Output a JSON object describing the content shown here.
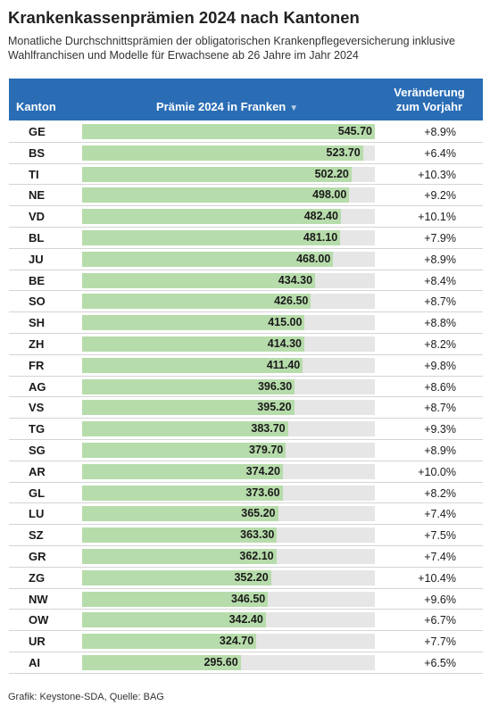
{
  "title": "Krankenkassenprämien 2024 nach Kantonen",
  "subtitle": "Monatliche Durchschnittsprämien der obligatorischen Krankenpflegeversicherung inklusive Wahlfranchisen und Modelle für Erwachsene ab 26 Jahre im Jahr 2024",
  "header": {
    "kanton": "Kanton",
    "praemie": "Prämie 2024 in Franken",
    "sort_icon": "▼",
    "change_line1": "Veränderung",
    "change_line2": "zum Vorjahr"
  },
  "footer": "Grafik: Keystone-SDA, Quelle: BAG",
  "colors": {
    "header": "#2a6db5",
    "bar": "#b7dcab",
    "track": "#e6e6e6"
  },
  "chart_data": {
    "type": "table",
    "columns": [
      "Kanton",
      "Prämie 2024 in Franken",
      "Veränderung zum Vorjahr"
    ],
    "scale_max": 545.7,
    "rows": [
      {
        "kanton": "GE",
        "value": 545.7,
        "value_label": "545.70",
        "change": "+8.9%"
      },
      {
        "kanton": "BS",
        "value": 523.7,
        "value_label": "523.70",
        "change": "+6.4%"
      },
      {
        "kanton": "TI",
        "value": 502.2,
        "value_label": "502.20",
        "change": "+10.3%"
      },
      {
        "kanton": "NE",
        "value": 498.0,
        "value_label": "498.00",
        "change": "+9.2%"
      },
      {
        "kanton": "VD",
        "value": 482.4,
        "value_label": "482.40",
        "change": "+10.1%"
      },
      {
        "kanton": "BL",
        "value": 481.1,
        "value_label": "481.10",
        "change": "+7.9%"
      },
      {
        "kanton": "JU",
        "value": 468.0,
        "value_label": "468.00",
        "change": "+8.9%"
      },
      {
        "kanton": "BE",
        "value": 434.3,
        "value_label": "434.30",
        "change": "+8.4%"
      },
      {
        "kanton": "SO",
        "value": 426.5,
        "value_label": "426.50",
        "change": "+8.7%"
      },
      {
        "kanton": "SH",
        "value": 415.0,
        "value_label": "415.00",
        "change": "+8.8%"
      },
      {
        "kanton": "ZH",
        "value": 414.3,
        "value_label": "414.30",
        "change": "+8.2%"
      },
      {
        "kanton": "FR",
        "value": 411.4,
        "value_label": "411.40",
        "change": "+9.8%"
      },
      {
        "kanton": "AG",
        "value": 396.3,
        "value_label": "396.30",
        "change": "+8.6%"
      },
      {
        "kanton": "VS",
        "value": 395.2,
        "value_label": "395.20",
        "change": "+8.7%"
      },
      {
        "kanton": "TG",
        "value": 383.7,
        "value_label": "383.70",
        "change": "+9.3%"
      },
      {
        "kanton": "SG",
        "value": 379.7,
        "value_label": "379.70",
        "change": "+8.9%"
      },
      {
        "kanton": "AR",
        "value": 374.2,
        "value_label": "374.20",
        "change": "+10.0%"
      },
      {
        "kanton": "GL",
        "value": 373.6,
        "value_label": "373.60",
        "change": "+8.2%"
      },
      {
        "kanton": "LU",
        "value": 365.2,
        "value_label": "365.20",
        "change": "+7.4%"
      },
      {
        "kanton": "SZ",
        "value": 363.3,
        "value_label": "363.30",
        "change": "+7.5%"
      },
      {
        "kanton": "GR",
        "value": 362.1,
        "value_label": "362.10",
        "change": "+7.4%"
      },
      {
        "kanton": "ZG",
        "value": 352.2,
        "value_label": "352.20",
        "change": "+10.4%"
      },
      {
        "kanton": "NW",
        "value": 346.5,
        "value_label": "346.50",
        "change": "+9.6%"
      },
      {
        "kanton": "OW",
        "value": 342.4,
        "value_label": "342.40",
        "change": "+6.7%"
      },
      {
        "kanton": "UR",
        "value": 324.7,
        "value_label": "324.70",
        "change": "+7.7%"
      },
      {
        "kanton": "AI",
        "value": 295.6,
        "value_label": "295.60",
        "change": "+6.5%"
      }
    ]
  }
}
